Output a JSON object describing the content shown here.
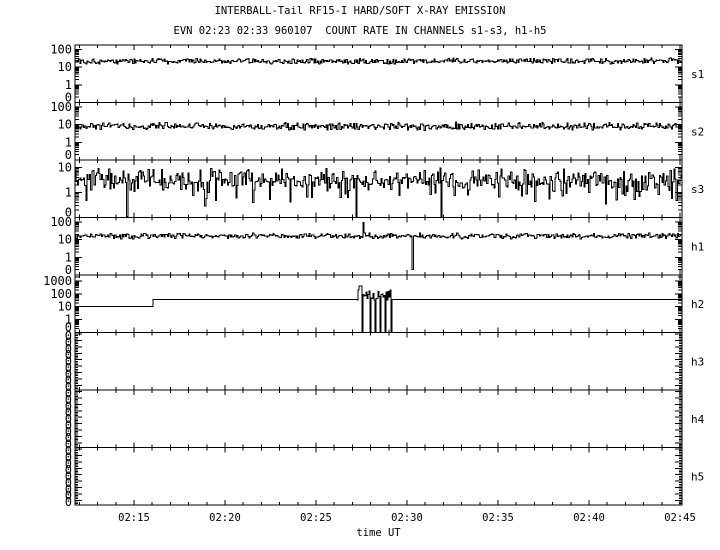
{
  "colors": {
    "foreground": "#000000",
    "background": "#ffffff"
  },
  "header": {
    "title": "INTERBALL-Tail RF15-I HARD/SOFT X-RAY EMISSION",
    "subtitle": "EVN 02:23 02:33 960107  COUNT RATE IN CHANNELS s1-s3, h1-h5"
  },
  "chart_data": {
    "type": "line",
    "title": "INTERBALL-Tail RF15-I HARD/SOFT X-RAY EMISSION",
    "subtitle": "EVN 02:23 02:33 960107  COUNT RATE IN CHANNELS s1-s3, h1-h5",
    "xlabel": "time UT",
    "grid": false,
    "x_axis": {
      "start_minutes_after_0200": 11.76,
      "end_minutes_after_0200": 45.11,
      "major_tick_minutes": [
        15,
        20,
        25,
        30,
        35,
        40,
        45
      ],
      "major_tick_labels": [
        "02:15",
        "02:20",
        "02:25",
        "02:30",
        "02:35",
        "02:40",
        "02:45"
      ],
      "minor_tick_every_minutes": 1
    },
    "panels": [
      {
        "channel": "s1",
        "axis": {
          "scale": "log",
          "log_min": -1,
          "log_max": 2.25,
          "tick_labels": [
            {
              "value": 100,
              "label": "100"
            },
            {
              "value": 10,
              "label": "10"
            },
            {
              "value": 1,
              "label": "1"
            }
          ],
          "bottom_label": "0"
        },
        "signal": {
          "kind": "noise",
          "mean_counts": 22,
          "base_log10": 1.34,
          "sigma_log10": 0.065,
          "seed": 101
        }
      },
      {
        "channel": "s2",
        "axis": {
          "scale": "log",
          "log_min": -1,
          "log_max": 2.25,
          "tick_labels": [
            {
              "value": 100,
              "label": "100"
            },
            {
              "value": 10,
              "label": "10"
            },
            {
              "value": 1,
              "label": "1"
            }
          ],
          "bottom_label": "0"
        },
        "signal": {
          "kind": "noise",
          "mean_counts": 8,
          "base_log10": 0.9,
          "sigma_log10": 0.08,
          "seed": 202
        }
      },
      {
        "channel": "s3",
        "axis": {
          "scale": "log",
          "log_min": -1,
          "log_max": 1.3,
          "tick_labels": [
            {
              "value": 10,
              "label": "10"
            },
            {
              "value": 1,
              "label": "1"
            }
          ],
          "bottom_label": "0"
        },
        "signal": {
          "kind": "noise",
          "mean_counts": 3,
          "base_log10": 0.5,
          "sigma_log10": 0.17,
          "seed": 303,
          "heavy_tail": true,
          "dropout_minutes_after_0200": [
            14.6,
            27.2,
            31.9
          ],
          "dropout_counts": 0.11
        }
      },
      {
        "channel": "h1",
        "axis": {
          "scale": "log",
          "log_min": -1,
          "log_max": 2.25,
          "tick_labels": [
            {
              "value": 100,
              "label": "100"
            },
            {
              "value": 10,
              "label": "10"
            },
            {
              "value": 1,
              "label": "1"
            }
          ],
          "bottom_label": "0"
        },
        "signal": {
          "kind": "noise",
          "mean_counts": 16,
          "base_log10": 1.2,
          "sigma_log10": 0.06,
          "seed": 404,
          "spikes": [
            {
              "minute_after_0200": 27.58,
              "counts": 90
            }
          ],
          "dropout_minutes_after_0200": [
            30.3
          ],
          "dropout_counts": 0.2
        }
      },
      {
        "channel": "h2",
        "axis": {
          "scale": "log",
          "log_min": -1,
          "log_max": 3.46,
          "tick_labels": [
            {
              "value": 1000,
              "label": "1000"
            },
            {
              "value": 100,
              "label": "100"
            },
            {
              "value": 10,
              "label": "10"
            },
            {
              "value": 1,
              "label": "1"
            }
          ],
          "bottom_label": "0"
        },
        "signal": {
          "kind": "step_burst",
          "seed": 505,
          "steps": [
            {
              "from_minute": 11.76,
              "to_minute": 16.04,
              "counts": 10
            },
            {
              "from_minute": 16.04,
              "to_minute": 27.25,
              "counts": 35
            },
            {
              "from_minute": 29.15,
              "to_minute": 45.11,
              "counts": 35
            }
          ],
          "burst": {
            "from_minute": 27.25,
            "to_minute": 29.15,
            "counts_low": 30,
            "counts_high": 250,
            "peak_minute": 27.42,
            "peak_counts": 400,
            "dropout_minutes_after_0200": [
              27.53,
              27.97,
              28.24,
              28.52,
              28.79,
              29.1
            ],
            "dropout_counts": 0.11
          }
        }
      },
      {
        "channel": "h3",
        "axis": {
          "scale": "degenerate_zero",
          "zero_label": "0",
          "zero_label_count": 9
        },
        "signal": {
          "kind": "flat_zero"
        }
      },
      {
        "channel": "h4",
        "axis": {
          "scale": "degenerate_zero",
          "zero_label": "0",
          "zero_label_count": 9
        },
        "signal": {
          "kind": "flat_zero"
        }
      },
      {
        "channel": "h5",
        "axis": {
          "scale": "degenerate_zero",
          "zero_label": "0",
          "zero_label_count": 9
        },
        "signal": {
          "kind": "flat_zero"
        }
      }
    ]
  }
}
